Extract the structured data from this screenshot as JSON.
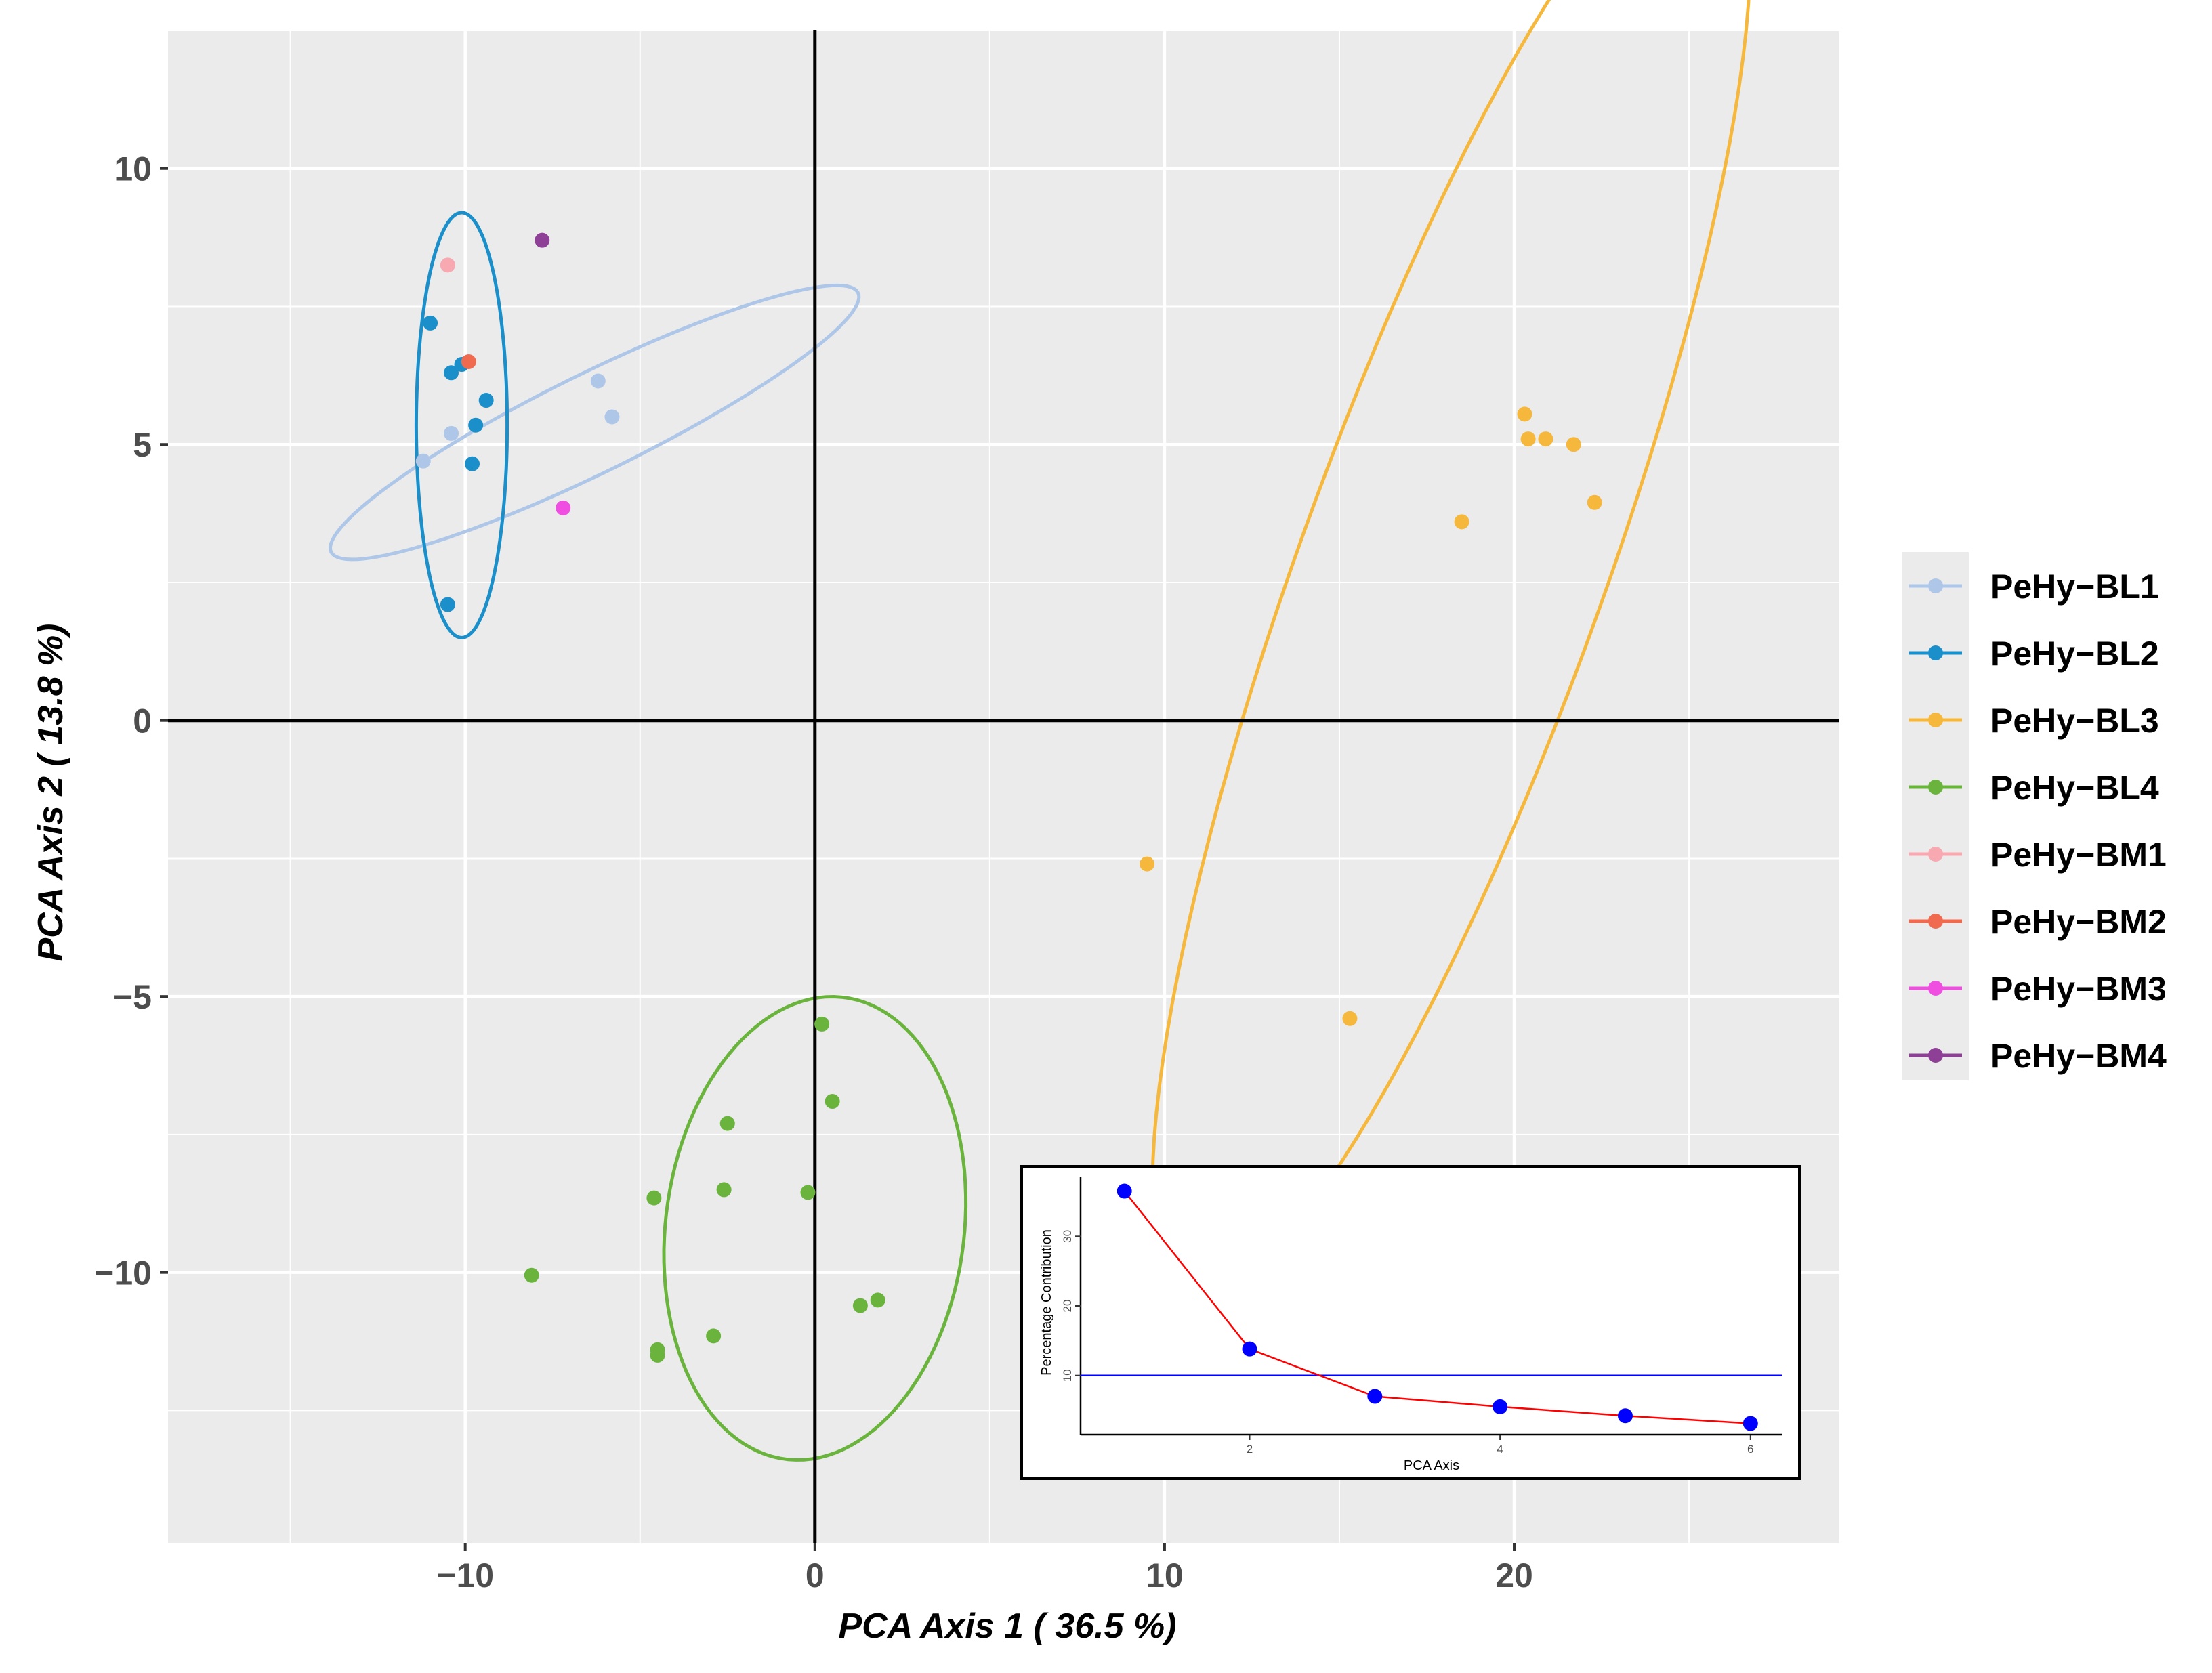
{
  "chart_data": {
    "type": "scatter",
    "xlabel": "PCA Axis 1 ( 36.5 %)",
    "ylabel": "PCA Axis 2 ( 13.8 %)",
    "xlim": [
      -18.5,
      29.3
    ],
    "ylim": [
      -14.9,
      12.5
    ],
    "x_ticks": [
      -10,
      0,
      10,
      20
    ],
    "y_ticks": [
      10,
      5,
      0,
      -5,
      -10
    ],
    "x_tick_labels": [
      "−10",
      "0",
      "10",
      "20"
    ],
    "y_tick_labels": [
      "10",
      "5",
      "0",
      "−5",
      "−10"
    ],
    "grid": true,
    "reference_lines": {
      "x": 0,
      "y": 0
    },
    "legend_position": "right",
    "series": [
      {
        "name": "PeHy−BL1",
        "color": "#aec7e8",
        "points": [
          [
            -11.2,
            4.7
          ],
          [
            -10.4,
            5.2
          ],
          [
            -6.2,
            6.15
          ],
          [
            -5.8,
            5.5
          ]
        ],
        "ellipse": {
          "cx": -6.3,
          "cy": 5.4,
          "rx": 7.9,
          "ry": 0.95,
          "angle_deg": 17
        }
      },
      {
        "name": "PeHy−BL2",
        "color": "#1b8fc9",
        "points": [
          [
            -11.0,
            7.2
          ],
          [
            -10.4,
            6.3
          ],
          [
            -10.1,
            6.45
          ],
          [
            -9.7,
            5.35
          ],
          [
            -9.4,
            5.8
          ],
          [
            -9.8,
            4.65
          ],
          [
            -10.5,
            2.1
          ]
        ],
        "ellipse": {
          "cx": -10.1,
          "cy": 5.35,
          "rx": 1.3,
          "ry": 3.85,
          "angle_deg": 0
        }
      },
      {
        "name": "PeHy−BL3",
        "color": "#f5b83d",
        "points": [
          [
            9.5,
            -2.6
          ],
          [
            15.3,
            -5.4
          ],
          [
            18.5,
            3.6
          ],
          [
            20.3,
            5.55
          ],
          [
            20.4,
            5.1
          ],
          [
            20.9,
            5.1
          ],
          [
            21.7,
            5.0
          ],
          [
            22.3,
            3.95
          ]
        ],
        "ellipse": {
          "cx": 18.2,
          "cy": 2.7,
          "rx": 15.2,
          "ry": 4.0,
          "angle_deg": 59
        }
      },
      {
        "name": "PeHy−BL4",
        "color": "#6ab43e",
        "points": [
          [
            0.2,
            -5.5
          ],
          [
            0.5,
            -6.9
          ],
          [
            -2.5,
            -7.3
          ],
          [
            -2.6,
            -8.5
          ],
          [
            -0.2,
            -8.55
          ],
          [
            -4.6,
            -8.65
          ],
          [
            -8.1,
            -10.05
          ],
          [
            1.3,
            -10.6
          ],
          [
            1.8,
            -10.5
          ],
          [
            -2.9,
            -11.15
          ],
          [
            -4.5,
            -11.4
          ],
          [
            -4.5,
            -11.5
          ]
        ],
        "ellipse": {
          "cx": -0.0,
          "cy": -9.2,
          "rx": 4.5,
          "ry": 4.0,
          "angle_deg": 38
        }
      },
      {
        "name": "PeHy−BM1",
        "color": "#f7a8b0",
        "points": [
          [
            -10.5,
            8.25
          ]
        ]
      },
      {
        "name": "PeHy−BM2",
        "color": "#f06a50",
        "points": [
          [
            -9.9,
            6.5
          ]
        ]
      },
      {
        "name": "PeHy−BM3",
        "color": "#f04ee0",
        "points": [
          [
            -7.2,
            3.85
          ]
        ]
      },
      {
        "name": "PeHy−BM4",
        "color": "#8e3f96",
        "points": [
          [
            -7.8,
            8.7
          ]
        ]
      }
    ],
    "inset": {
      "type": "line",
      "xlabel": "PCA Axis",
      "ylabel": "Percentage Contribution",
      "x": [
        1,
        2,
        3,
        4,
        5,
        6
      ],
      "values": [
        36.5,
        13.8,
        7.0,
        5.5,
        4.2,
        3.1
      ],
      "xlim": [
        0.65,
        6.25
      ],
      "ylim": [
        1.5,
        38.5
      ],
      "x_ticks": [
        2,
        4,
        6
      ],
      "y_ticks": [
        10,
        20,
        30
      ],
      "x_tick_labels": [
        "2",
        "4",
        "6"
      ],
      "y_tick_labels": [
        "10",
        "20",
        "30"
      ],
      "threshold": 10,
      "line_color": "#ff0000",
      "point_color": "#0000ff",
      "threshold_color": "#0000ff"
    }
  }
}
